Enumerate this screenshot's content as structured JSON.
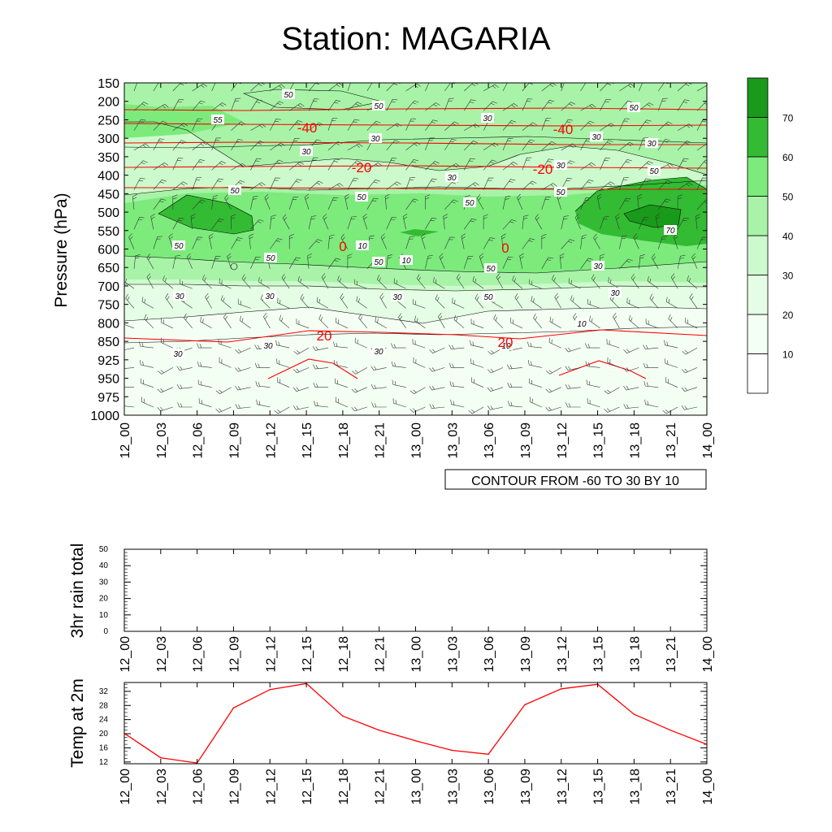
{
  "title": "Station: MAGARIA",
  "time_labels": [
    "12_00",
    "12_03",
    "12_06",
    "12_09",
    "12_12",
    "12_15",
    "12_18",
    "12_21",
    "13_00",
    "13_03",
    "13_06",
    "13_09",
    "13_12",
    "13_15",
    "13_18",
    "13_21",
    "14_00"
  ],
  "colors": {
    "temp_line": "#ff0000",
    "fill_10_20": "#f4fff4",
    "fill_20_30": "#e4fde4",
    "fill_30_40": "#ccfacc",
    "fill_40_50": "#a8f3a8",
    "fill_50_60": "#7ceb7c",
    "fill_60_70": "#33bb33",
    "fill_70_80": "#1a9a1a"
  },
  "chart_data": [
    {
      "type": "heatmap",
      "name": "time-height cross-section",
      "ylabel": "Pressure (hPa)",
      "pressure_levels": [
        150,
        200,
        250,
        300,
        350,
        400,
        450,
        500,
        550,
        600,
        650,
        700,
        750,
        800,
        850,
        925,
        950,
        975,
        1000
      ],
      "footer_label": "CONTOUR FROM -60 TO 30 BY 10",
      "colorbar": {
        "levels": [
          10,
          20,
          30,
          40,
          50,
          60,
          70
        ],
        "tick_labels": [
          "10",
          "20",
          "30",
          "40",
          "50",
          "60",
          "70"
        ]
      },
      "humidity_contour_labels": [
        "50",
        "50",
        "50",
        "55",
        "30",
        "30",
        "30",
        "30",
        "30",
        "30",
        "30",
        "30",
        "30",
        "30",
        "50",
        "50",
        "50",
        "50",
        "50",
        "50",
        "50",
        "50",
        "50",
        "50",
        "30",
        "30",
        "30",
        "30",
        "30",
        "10",
        "10",
        "10",
        "10",
        "70"
      ],
      "temperature_contours": [
        {
          "value": -40,
          "pressure": 260,
          "labels": [
            "-40",
            "-40"
          ]
        },
        {
          "value": -20,
          "pressure": 375,
          "labels": [
            "-20",
            "-20"
          ]
        },
        {
          "value": 0,
          "pressure": 590,
          "labels": [
            "0",
            "0"
          ]
        },
        {
          "value": 20,
          "pressure": 830,
          "labels": [
            "20",
            "20"
          ]
        }
      ]
    },
    {
      "type": "bar",
      "name": "3hr rain total",
      "ylabel": "3hr rain total",
      "ylim": [
        0,
        50
      ],
      "yticks": [
        0,
        10,
        20,
        30,
        40,
        50
      ],
      "values": [
        0,
        0,
        0,
        0,
        0,
        0,
        0,
        0,
        0,
        0,
        0,
        0,
        0,
        0,
        0,
        0,
        0
      ]
    },
    {
      "type": "line",
      "name": "Temp at 2m",
      "ylabel": "Temp at 2m",
      "ylim": [
        11.5,
        34.5
      ],
      "yticks": [
        12,
        16,
        20,
        24,
        28,
        32
      ],
      "values": [
        20.1,
        13.2,
        11.7,
        27.3,
        32.5,
        34.2,
        25.0,
        21.0,
        18.0,
        15.3,
        14.2,
        28.2,
        32.7,
        34.0,
        25.5,
        21.0,
        17.0
      ]
    }
  ]
}
